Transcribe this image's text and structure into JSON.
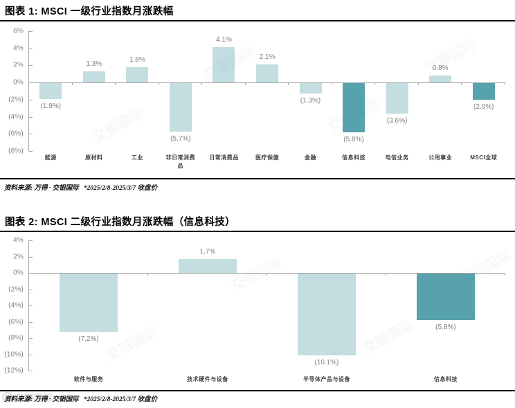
{
  "page": {
    "background": "#ffffff"
  },
  "colors": {
    "bar_light": "#c3dde0",
    "bar_dark": "#57a2ad",
    "axis": "#a6a6a6",
    "tick_label": "#808080",
    "value_label": "#7f7f7f",
    "category_label": "#3f3f3f",
    "rule": "#000000"
  },
  "watermark": {
    "text": "交银国际"
  },
  "chart_data": [
    {
      "type": "bar",
      "title": "图表 1: MSCI 一级行业指数月涨跌幅",
      "categories": [
        "能源",
        "原材料",
        "工业",
        "非日常消费品",
        "日常消费品",
        "医疗保健",
        "金融",
        "信息科技",
        "电信业务",
        "公用事业",
        "MSCI全球"
      ],
      "values": [
        -1.9,
        1.3,
        1.8,
        -5.7,
        4.1,
        2.1,
        -1.3,
        -5.8,
        -3.6,
        0.8,
        -2.0
      ],
      "labels": [
        "(1.9%)",
        "1.3%",
        "1.8%",
        "(5.7%)",
        "4.1%",
        "2.1%",
        "(1.3%)",
        "(5.8%)",
        "(3.6%)",
        "0.8%",
        "(2.0%)"
      ],
      "highlight_indices": [
        7,
        10
      ],
      "ylim": [
        -8,
        6
      ],
      "ytick_step": 2,
      "ytick_labels": [
        "6%",
        "4%",
        "2%",
        "0%",
        "(2%)",
        "(4%)",
        "(6%)",
        "(8%)"
      ],
      "grid": false,
      "legend": null,
      "source": "资料来源: 万得 · 交银国际   *2025/2/8-2025/3/7 收盘价"
    },
    {
      "type": "bar",
      "title": "图表 2: MSCI 二级行业指数月涨跌幅（信息科技）",
      "categories": [
        "软件与服务",
        "技术硬件与设备",
        "半导体产品与设备",
        "信息科技"
      ],
      "values": [
        -7.2,
        1.7,
        -10.1,
        -5.8
      ],
      "labels": [
        "(7.2%)",
        "1.7%",
        "(10.1%)",
        "(5.8%)"
      ],
      "highlight_indices": [
        3
      ],
      "ylim": [
        -12,
        4
      ],
      "ytick_step": 2,
      "ytick_labels": [
        "4%",
        "2%",
        "0%",
        "(2%)",
        "(4%)",
        "(6%)",
        "(8%)",
        "(10%)",
        "(12%)"
      ],
      "grid": false,
      "legend": null,
      "source": "资料来源: 万得 · 交银国际   *2025/2/8-2025/3/7 收盘价"
    }
  ]
}
